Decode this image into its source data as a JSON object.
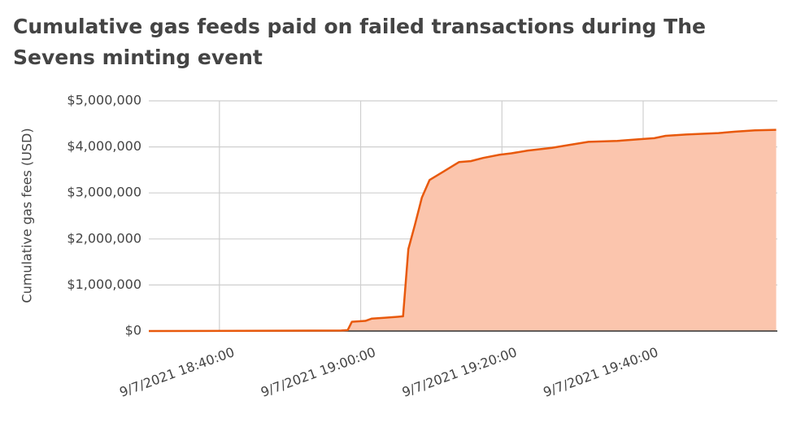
{
  "chart_data": {
    "type": "area",
    "title": "Cumulative gas feeds paid on failed transactions during The Sevens minting event",
    "y_label": "Cumulative gas fees (USD)",
    "x": [
      "9/7/2021 18:30:00",
      "9/7/2021 18:57:15",
      "9/7/2021 18:58:10",
      "9/7/2021 18:58:45",
      "9/7/2021 19:00:40",
      "9/7/2021 19:01:35",
      "9/7/2021 19:03:30",
      "9/7/2021 19:05:15",
      "9/7/2021 19:06:00",
      "9/7/2021 19:06:45",
      "9/7/2021 19:07:40",
      "9/7/2021 19:08:40",
      "9/7/2021 19:09:45",
      "9/7/2021 19:11:35",
      "9/7/2021 19:13:55",
      "9/7/2021 19:15:35",
      "9/7/2021 19:17:20",
      "9/7/2021 19:19:40",
      "9/7/2021 19:21:20",
      "9/7/2021 19:23:40",
      "9/7/2021 19:27:05",
      "9/7/2021 19:29:25",
      "9/7/2021 19:32:15",
      "9/7/2021 19:36:20",
      "9/7/2021 19:39:45",
      "9/7/2021 19:41:35",
      "9/7/2021 19:43:10",
      "9/7/2021 19:46:05",
      "9/7/2021 19:50:40",
      "9/7/2021 19:53:00",
      "9/7/2021 19:55:50",
      "9/7/2021 19:58:50"
    ],
    "values": [
      0,
      10000,
      20000,
      200000,
      220000,
      270000,
      290000,
      310000,
      320000,
      1780000,
      2300000,
      2900000,
      3280000,
      3450000,
      3670000,
      3690000,
      3760000,
      3830000,
      3860000,
      3920000,
      3980000,
      4040000,
      4110000,
      4130000,
      4170000,
      4190000,
      4240000,
      4270000,
      4300000,
      4330000,
      4360000,
      4370000
    ],
    "line_color": "#e8590c",
    "fill_color": "#fbc5ad",
    "xlim": [
      "9/7/2021 18:30:00",
      "9/7/2021 19:59:00"
    ],
    "xticks": [
      "9/7/2021 18:40:00",
      "9/7/2021 19:00:00",
      "9/7/2021 19:20:00",
      "9/7/2021 19:40:00"
    ],
    "ylim": [
      0,
      5000000
    ],
    "yticks": [
      {
        "value": 0,
        "label": "$0"
      },
      {
        "value": 1000000,
        "label": "$1,000,000"
      },
      {
        "value": 2000000,
        "label": "$2,000,000"
      },
      {
        "value": 3000000,
        "label": "$3,000,000"
      },
      {
        "value": 4000000,
        "label": "$4,000,000"
      },
      {
        "value": 5000000,
        "label": "$5,000,000"
      }
    ],
    "grid": true
  }
}
